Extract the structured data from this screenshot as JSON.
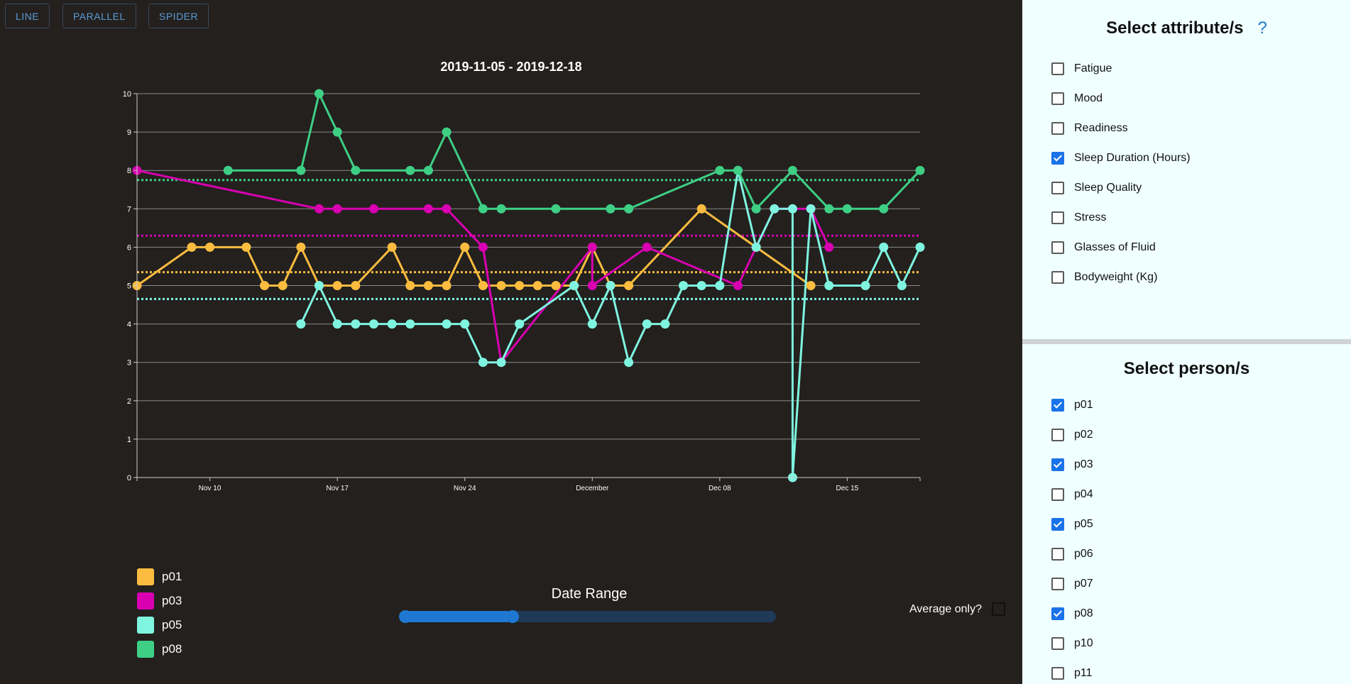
{
  "tabs": [
    {
      "label": "LINE"
    },
    {
      "label": "PARALLEL"
    },
    {
      "label": "SPIDER"
    }
  ],
  "chart_data": {
    "type": "line",
    "title": "2019-11-05 - 2019-12-18",
    "xlabel": "",
    "ylabel": "",
    "x_range": [
      "2019-11-06",
      "2019-12-19"
    ],
    "ylim": [
      0,
      10
    ],
    "y_ticks": [
      0,
      1,
      2,
      3,
      4,
      5,
      6,
      7,
      8,
      9,
      10
    ],
    "x_ticks": [
      {
        "date": "2019-11-10",
        "label": "Nov 10"
      },
      {
        "date": "2019-11-17",
        "label": "Nov 17"
      },
      {
        "date": "2019-11-24",
        "label": "Nov 24"
      },
      {
        "date": "2019-12-01",
        "label": "December"
      },
      {
        "date": "2019-12-08",
        "label": "Dec 08"
      },
      {
        "date": "2019-12-15",
        "label": "Dec 15"
      }
    ],
    "grid": true,
    "legend_position": "bottom-left",
    "series": [
      {
        "name": "p01",
        "color": "#fbbc3f",
        "average": 5.35,
        "points": [
          [
            "2019-11-06",
            5
          ],
          [
            "2019-11-09",
            6
          ],
          [
            "2019-11-10",
            6
          ],
          [
            "2019-11-12",
            6
          ],
          [
            "2019-11-13",
            5
          ],
          [
            "2019-11-14",
            5
          ],
          [
            "2019-11-15",
            6
          ],
          [
            "2019-11-16",
            5
          ],
          [
            "2019-11-17",
            5
          ],
          [
            "2019-11-18",
            5
          ],
          [
            "2019-11-20",
            6
          ],
          [
            "2019-11-21",
            5
          ],
          [
            "2019-11-22",
            5
          ],
          [
            "2019-11-23",
            5
          ],
          [
            "2019-11-24",
            6
          ],
          [
            "2019-11-25",
            5
          ],
          [
            "2019-11-26",
            5
          ],
          [
            "2019-11-27",
            5
          ],
          [
            "2019-11-28",
            5
          ],
          [
            "2019-11-29",
            5
          ],
          [
            "2019-11-30",
            5
          ],
          [
            "2019-12-01",
            6
          ],
          [
            "2019-12-02",
            5
          ],
          [
            "2019-12-03",
            5
          ],
          [
            "2019-12-07",
            7
          ],
          [
            "2019-12-10",
            6
          ],
          [
            "2019-12-13",
            5
          ]
        ]
      },
      {
        "name": "p03",
        "color": "#d800b0",
        "average": 6.3,
        "points": [
          [
            "2019-11-06",
            8
          ],
          [
            "2019-11-16",
            7
          ],
          [
            "2019-11-17",
            7
          ],
          [
            "2019-11-19",
            7
          ],
          [
            "2019-11-22",
            7
          ],
          [
            "2019-11-23",
            7
          ],
          [
            "2019-11-25",
            6
          ],
          [
            "2019-11-26",
            3
          ],
          [
            "2019-12-01",
            6
          ],
          [
            "2019-12-01",
            5
          ],
          [
            "2019-12-04",
            6
          ],
          [
            "2019-12-09",
            5
          ],
          [
            "2019-12-10",
            6
          ],
          [
            "2019-12-11",
            7
          ],
          [
            "2019-12-13",
            7
          ],
          [
            "2019-12-14",
            6
          ]
        ]
      },
      {
        "name": "p05",
        "color": "#7ff5e0",
        "average": 4.65,
        "points": [
          [
            "2019-11-15",
            4
          ],
          [
            "2019-11-16",
            5
          ],
          [
            "2019-11-17",
            4
          ],
          [
            "2019-11-18",
            4
          ],
          [
            "2019-11-19",
            4
          ],
          [
            "2019-11-20",
            4
          ],
          [
            "2019-11-21",
            4
          ],
          [
            "2019-11-23",
            4
          ],
          [
            "2019-11-24",
            4
          ],
          [
            "2019-11-25",
            3
          ],
          [
            "2019-11-26",
            3
          ],
          [
            "2019-11-27",
            4
          ],
          [
            "2019-11-30",
            5
          ],
          [
            "2019-12-01",
            4
          ],
          [
            "2019-12-02",
            5
          ],
          [
            "2019-12-03",
            3
          ],
          [
            "2019-12-04",
            4
          ],
          [
            "2019-12-05",
            4
          ],
          [
            "2019-12-06",
            5
          ],
          [
            "2019-12-07",
            5
          ],
          [
            "2019-12-08",
            5
          ],
          [
            "2019-12-09",
            8
          ],
          [
            "2019-12-10",
            6
          ],
          [
            "2019-12-11",
            7
          ],
          [
            "2019-12-12",
            7
          ],
          [
            "2019-12-12",
            0
          ],
          [
            "2019-12-13",
            7
          ],
          [
            "2019-12-14",
            5
          ],
          [
            "2019-12-16",
            5
          ],
          [
            "2019-12-17",
            6
          ],
          [
            "2019-12-18",
            5
          ],
          [
            "2019-12-19",
            6
          ]
        ]
      },
      {
        "name": "p08",
        "color": "#3ecf85",
        "average": 7.75,
        "points": [
          [
            "2019-11-11",
            8
          ],
          [
            "2019-11-15",
            8
          ],
          [
            "2019-11-16",
            10
          ],
          [
            "2019-11-17",
            9
          ],
          [
            "2019-11-18",
            8
          ],
          [
            "2019-11-21",
            8
          ],
          [
            "2019-11-22",
            8
          ],
          [
            "2019-11-23",
            9
          ],
          [
            "2019-11-25",
            7
          ],
          [
            "2019-11-26",
            7
          ],
          [
            "2019-11-29",
            7
          ],
          [
            "2019-12-02",
            7
          ],
          [
            "2019-12-03",
            7
          ],
          [
            "2019-12-08",
            8
          ],
          [
            "2019-12-09",
            8
          ],
          [
            "2019-12-10",
            7
          ],
          [
            "2019-12-12",
            8
          ],
          [
            "2019-12-14",
            7
          ],
          [
            "2019-12-15",
            7
          ],
          [
            "2019-12-17",
            7
          ],
          [
            "2019-12-19",
            8
          ]
        ]
      }
    ]
  },
  "legend": [
    {
      "label": "p01",
      "color": "#fbbc3f"
    },
    {
      "label": "p03",
      "color": "#d800b0"
    },
    {
      "label": "p05",
      "color": "#7ff5e0"
    },
    {
      "label": "p08",
      "color": "#3ecf85"
    }
  ],
  "date_range": {
    "title": "Date Range",
    "start_fraction": 0.0,
    "end_fraction": 0.3
  },
  "average_only": {
    "label": "Average only?",
    "checked": false
  },
  "attributes": {
    "title": "Select attribute/s",
    "help": "?",
    "options": [
      {
        "label": "Fatigue",
        "checked": false
      },
      {
        "label": "Mood",
        "checked": false
      },
      {
        "label": "Readiness",
        "checked": false
      },
      {
        "label": "Sleep Duration (Hours)",
        "checked": true
      },
      {
        "label": "Sleep Quality",
        "checked": false
      },
      {
        "label": "Stress",
        "checked": false
      },
      {
        "label": "Glasses of Fluid",
        "checked": false
      },
      {
        "label": "Bodyweight (Kg)",
        "checked": false
      }
    ]
  },
  "persons": {
    "title": "Select person/s",
    "options": [
      {
        "label": "p01",
        "checked": true
      },
      {
        "label": "p02",
        "checked": false
      },
      {
        "label": "p03",
        "checked": true
      },
      {
        "label": "p04",
        "checked": false
      },
      {
        "label": "p05",
        "checked": true
      },
      {
        "label": "p06",
        "checked": false
      },
      {
        "label": "p07",
        "checked": false
      },
      {
        "label": "p08",
        "checked": true
      },
      {
        "label": "p10",
        "checked": false
      },
      {
        "label": "p11",
        "checked": false
      }
    ]
  }
}
